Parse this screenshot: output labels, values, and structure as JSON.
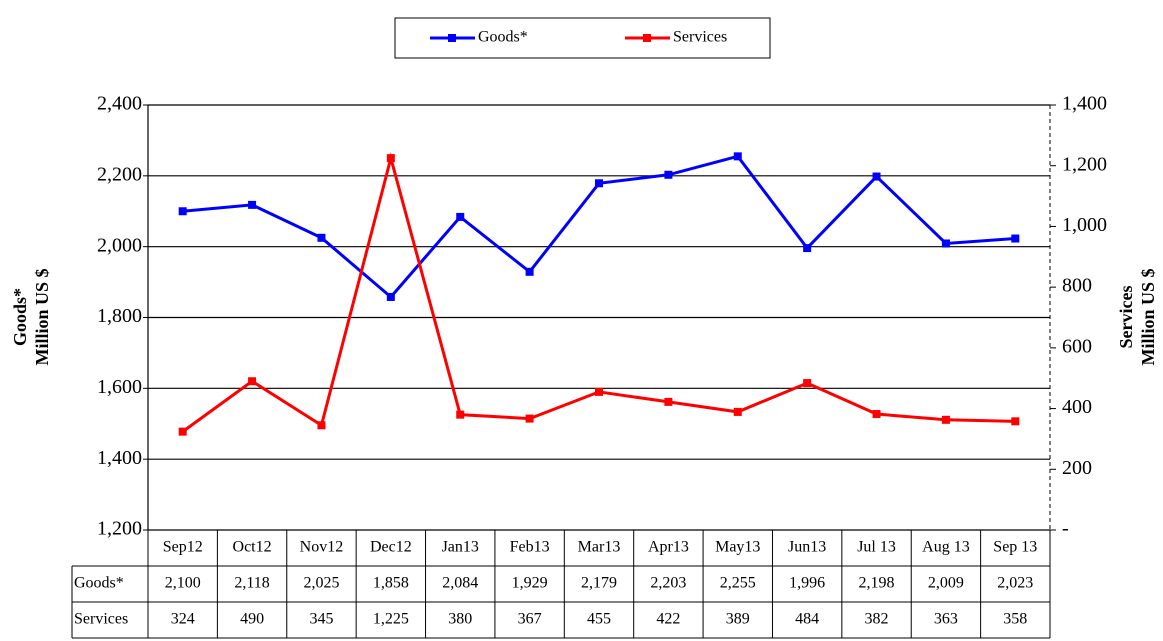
{
  "chart_data": {
    "type": "line",
    "categories": [
      "Sep12",
      "Oct12",
      "Nov12",
      "Dec12",
      "Jan13",
      "Feb13",
      "Mar13",
      "Apr13",
      "May13",
      "Jun13",
      "Jul 13",
      "Aug 13",
      "Sep 13"
    ],
    "series": [
      {
        "name": "Goods*",
        "color": "#0000ff",
        "values": [
          2100,
          2118,
          2025,
          1858,
          2084,
          1929,
          2179,
          2203,
          2255,
          1996,
          2198,
          2009,
          2023
        ],
        "value_labels": [
          "2,100",
          "2,118",
          "2,025",
          "1,858",
          "2,084",
          "1,929",
          "2,179",
          "2,203",
          "2,255",
          "1,996",
          "2,198",
          "2,009",
          "2,023"
        ]
      },
      {
        "name": "Services",
        "color": "#ff0000",
        "axis": "y2",
        "values": [
          324,
          490,
          345,
          1225,
          380,
          367,
          455,
          422,
          389,
          484,
          382,
          363,
          358
        ],
        "value_labels": [
          "324",
          "490",
          "345",
          "1,225",
          "380",
          "367",
          "455",
          "422",
          "389",
          "484",
          "382",
          "363",
          "358"
        ]
      }
    ],
    "ylabel": [
      "Goods*",
      "Million US $"
    ],
    "y2label": [
      "Services",
      "Million US $"
    ],
    "ylim": [
      1200,
      2400
    ],
    "yticks": [
      {
        "value": 1200,
        "label": "1,200"
      },
      {
        "value": 1400,
        "label": "1,400"
      },
      {
        "value": 1600,
        "label": "1,600"
      },
      {
        "value": 1800,
        "label": "1,800"
      },
      {
        "value": 2000,
        "label": "2,000"
      },
      {
        "value": 2200,
        "label": "2,200"
      },
      {
        "value": 2400,
        "label": "2,400"
      }
    ],
    "y2lim": [
      0,
      1400
    ],
    "y2ticks": [
      {
        "value": 0,
        "label": "-"
      },
      200,
      400,
      600,
      800,
      {
        "value": 1000,
        "label": "1,000"
      },
      {
        "value": 1200,
        "label": "1,200"
      },
      {
        "value": 1400,
        "label": "1,400"
      }
    ],
    "grid": true,
    "legend": "top"
  }
}
